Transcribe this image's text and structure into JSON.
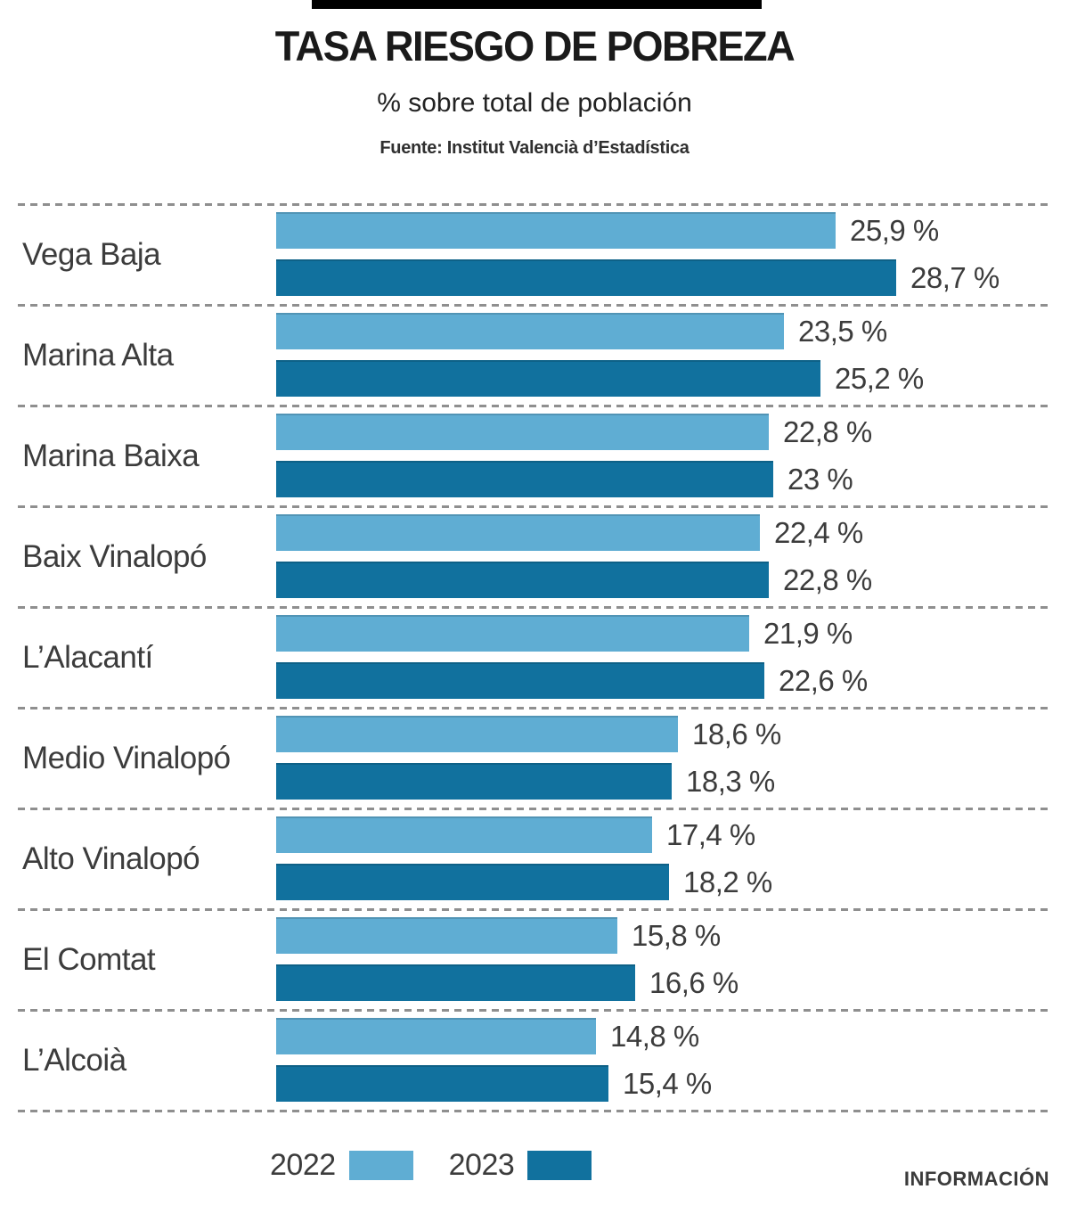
{
  "header": {
    "title": "TASA RIESGO DE POBREZA",
    "subtitle": "% sobre total de población",
    "source": "Fuente: Institut Valencià d’Estadística"
  },
  "chart_data": {
    "type": "bar",
    "orientation": "horizontal",
    "title": "TASA RIESGO DE POBREZA",
    "subtitle": "% sobre total de población",
    "source": "Fuente: Institut Valencià d’Estadística",
    "unit": "%",
    "xlim": [
      0,
      30
    ],
    "grid": "dashed row separators",
    "legend_position": "bottom-left",
    "categories": [
      "Vega Baja",
      "Marina Alta",
      "Marina Baixa",
      "Baix Vinalopó",
      "L’Alacantí",
      "Medio Vinalopó",
      "Alto Vinalopó",
      "El Comtat",
      "L’Alcoià"
    ],
    "series": [
      {
        "name": "2022",
        "color": "#5fadd3",
        "values": [
          25.9,
          23.5,
          22.8,
          22.4,
          21.9,
          18.6,
          17.4,
          15.8,
          14.8
        ],
        "value_labels": [
          "25,9 %",
          "23,5 %",
          "22,8 %",
          "22,4 %",
          "21,9 %",
          "18,6 %",
          "17,4 %",
          "15,8 %",
          "14,8 %"
        ]
      },
      {
        "name": "2023",
        "color": "#11719e",
        "values": [
          28.7,
          25.2,
          23,
          22.8,
          22.6,
          18.3,
          18.2,
          16.6,
          15.4
        ],
        "value_labels": [
          "28,7 %",
          "25,2 %",
          "23 %",
          "22,8 %",
          "22,6 %",
          "18,3 %",
          "18,2 %",
          "16,6 %",
          "15,4 %"
        ]
      }
    ]
  },
  "legend": {
    "items": [
      {
        "label": "2022",
        "color": "#5fadd3"
      },
      {
        "label": "2023",
        "color": "#11719e"
      }
    ]
  },
  "footer": {
    "brand": "INFORMACIÓN"
  },
  "colors": {
    "bar_2022": "#5fadd3",
    "bar_2023": "#11719e",
    "separator": "#8f8f8f",
    "text": "#3c3c3c",
    "title": "#1a1a1a",
    "top_bar": "#000000"
  }
}
